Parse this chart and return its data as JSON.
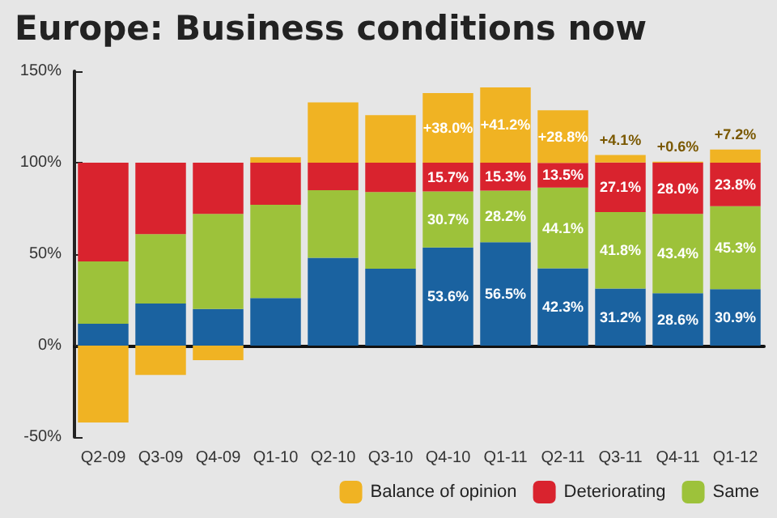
{
  "chart_data": {
    "type": "bar",
    "stacked": true,
    "title": "Europe: Business conditions now",
    "categories": [
      "Q2-09",
      "Q3-09",
      "Q4-09",
      "Q1-10",
      "Q2-10",
      "Q3-10",
      "Q4-10",
      "Q1-11",
      "Q2-11",
      "Q3-11",
      "Q4-11",
      "Q1-12"
    ],
    "series": [
      {
        "color": "#1a62a0",
        "values": [
          12,
          23,
          20,
          26,
          48,
          42,
          53.6,
          56.5,
          42.3,
          31.2,
          28.6,
          30.9
        ],
        "value_labels": [
          null,
          null,
          null,
          null,
          null,
          null,
          "53.6%",
          "56.5%",
          "42.3%",
          "31.2%",
          "28.6%",
          "30.9%"
        ]
      },
      {
        "name": "Same",
        "color": "#9dc23a",
        "values": [
          34,
          38,
          52,
          51,
          37,
          42,
          30.7,
          28.2,
          44.1,
          41.8,
          43.4,
          45.3
        ],
        "value_labels": [
          null,
          null,
          null,
          null,
          null,
          null,
          "30.7%",
          "28.2%",
          "44.1%",
          "41.8%",
          "43.4%",
          "45.3%"
        ]
      },
      {
        "name": "Deteriorating",
        "color": "#d9232e",
        "values": [
          54,
          39,
          28,
          23,
          15,
          16,
          15.7,
          15.3,
          13.5,
          27.1,
          28.0,
          23.8
        ],
        "value_labels": [
          null,
          null,
          null,
          null,
          null,
          null,
          "15.7%",
          "15.3%",
          "13.5%",
          "27.1%",
          "28.0%",
          "23.8%"
        ]
      },
      {
        "name": "Balance of opinion",
        "color": "#f0b323",
        "values": [
          -42,
          -16,
          -8,
          3,
          33,
          26,
          38.0,
          41.2,
          28.8,
          4.1,
          0.6,
          7.2
        ],
        "value_labels": [
          null,
          null,
          null,
          null,
          null,
          null,
          "+38.0%",
          "+41.2%",
          "+28.8%",
          "+4.1%",
          "+0.6%",
          "+7.2%"
        ]
      }
    ],
    "ylim": [
      -50,
      150
    ],
    "yticks": [
      {
        "value": -50,
        "label": "-50%"
      },
      {
        "value": 0,
        "label": "0%"
      },
      {
        "value": 50,
        "label": "50%"
      },
      {
        "value": 100,
        "label": "100%"
      },
      {
        "value": 150,
        "label": "150%"
      }
    ],
    "legend": "bottom right"
  }
}
